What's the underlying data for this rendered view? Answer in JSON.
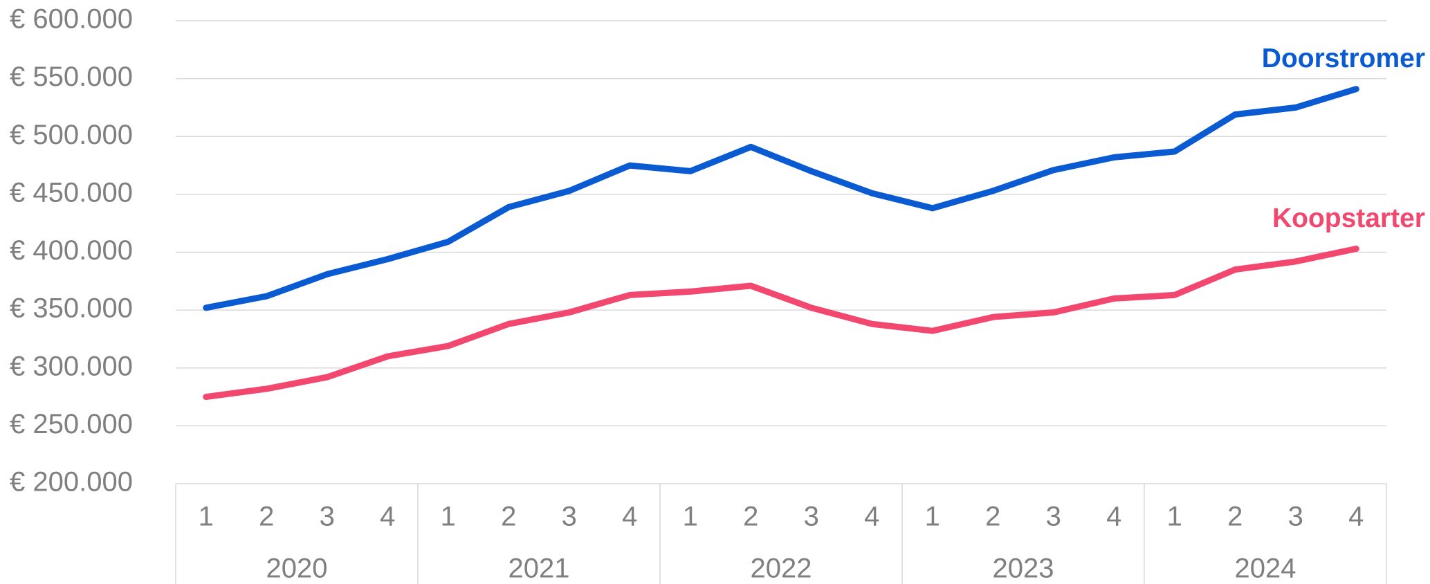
{
  "chart_data": {
    "type": "line",
    "categories": [
      "1",
      "2",
      "3",
      "4",
      "1",
      "2",
      "3",
      "4",
      "1",
      "2",
      "3",
      "4",
      "1",
      "2",
      "3",
      "4",
      "1",
      "2",
      "3",
      "4"
    ],
    "groups": [
      "2020",
      "2021",
      "2022",
      "2023",
      "2024"
    ],
    "series": [
      {
        "name": "Doorstromer",
        "color": "#0a5ad2",
        "values": [
          352000,
          362000,
          381000,
          394000,
          409000,
          439000,
          453000,
          475000,
          470000,
          491000,
          470000,
          451000,
          438000,
          453000,
          471000,
          482000,
          487000,
          519000,
          525000,
          541000
        ]
      },
      {
        "name": "Koopstarter",
        "color": "#f2476f",
        "values": [
          275000,
          282000,
          292000,
          310000,
          319000,
          338000,
          348000,
          363000,
          366000,
          371000,
          352000,
          338000,
          332000,
          344000,
          348000,
          360000,
          363000,
          385000,
          392000,
          403000
        ]
      }
    ],
    "ylim": [
      200000,
      600000
    ],
    "yticks": [
      {
        "value": 200000,
        "label": "€ 200.000"
      },
      {
        "value": 250000,
        "label": "€ 250.000"
      },
      {
        "value": 300000,
        "label": "€ 300.000"
      },
      {
        "value": 350000,
        "label": "€ 350.000"
      },
      {
        "value": 400000,
        "label": "€ 400.000"
      },
      {
        "value": 450000,
        "label": "€ 450.000"
      },
      {
        "value": 500000,
        "label": "€ 500.000"
      },
      {
        "value": 550000,
        "label": "€ 550.000"
      },
      {
        "value": 600000,
        "label": "€ 600.000"
      }
    ],
    "grid": true
  }
}
